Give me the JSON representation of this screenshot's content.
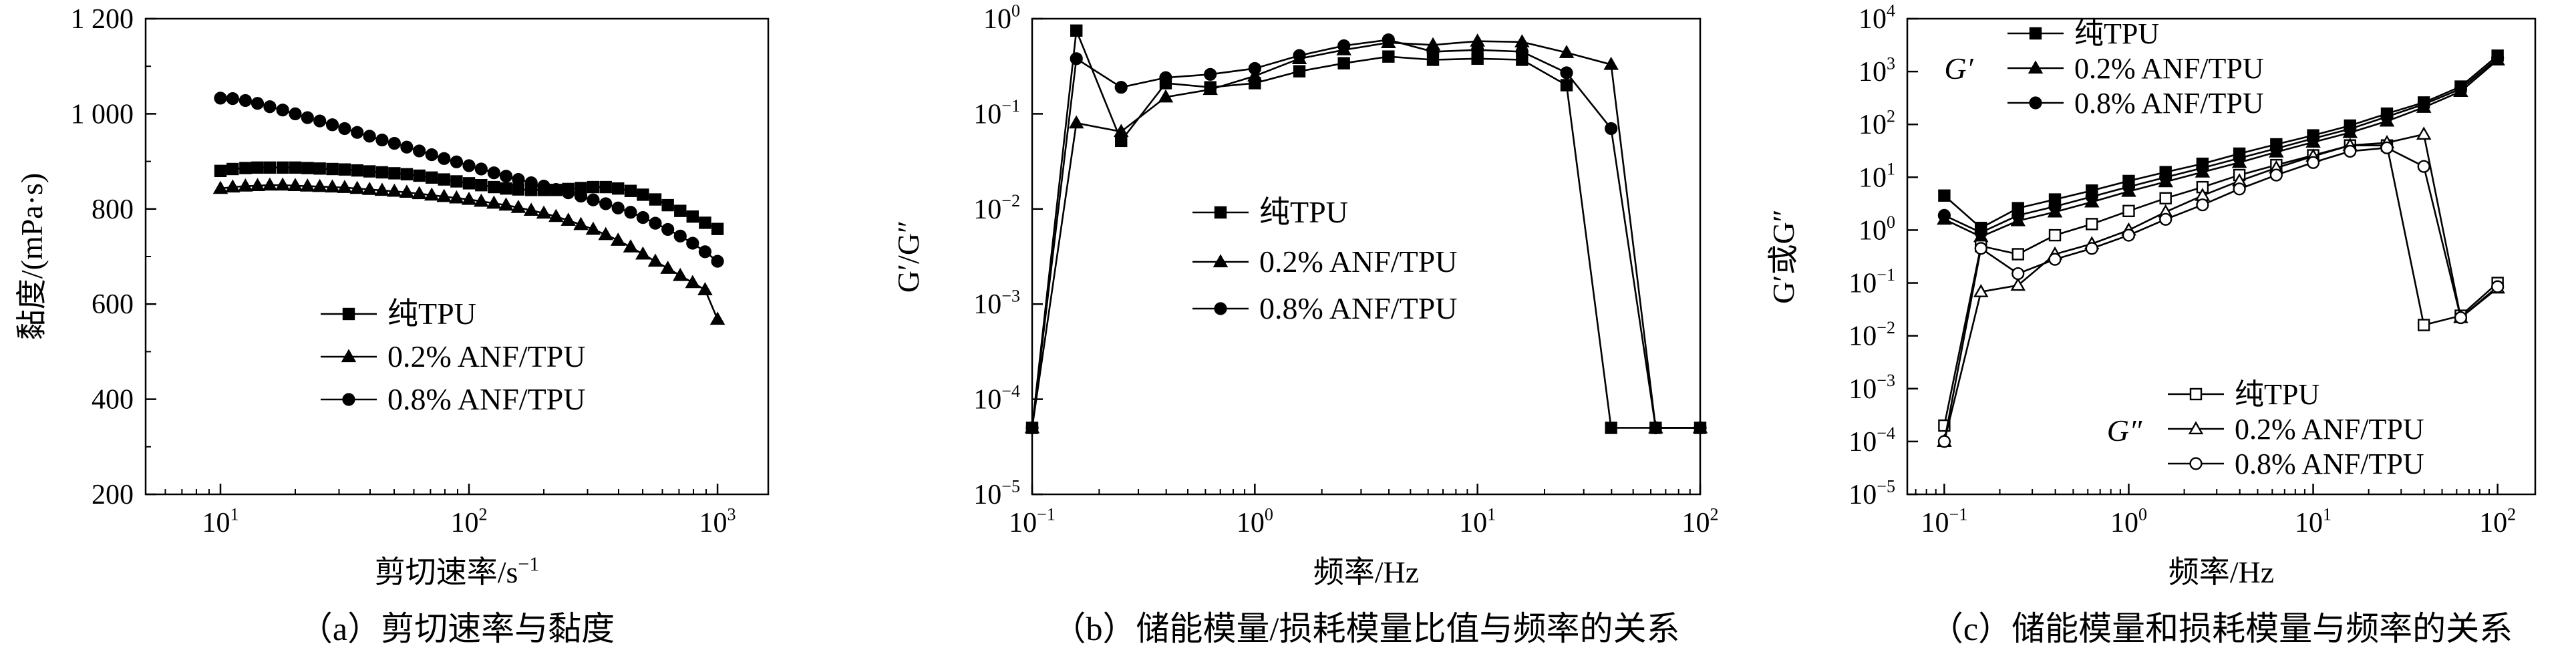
{
  "chart_data": [
    {
      "type": "line",
      "panel": "a",
      "caption": "（a）剪切速率与黏度",
      "xlabel": "剪切速率/s",
      "xlabel_sup": "−1",
      "ylabel": "黏度/(mPa·s)",
      "xscale": "log",
      "xlim": [
        5,
        1600
      ],
      "ylim": [
        200,
        1200
      ],
      "x_ticks": [
        10,
        100,
        1000
      ],
      "x_tick_labels": [
        [
          "10",
          "1"
        ],
        [
          "10",
          "2"
        ],
        [
          "10",
          "3"
        ]
      ],
      "y_ticks": [
        200,
        400,
        600,
        800,
        1000,
        1200
      ],
      "y_tick_labels": [
        "200",
        "400",
        "600",
        "800",
        "1 000",
        "1 200"
      ],
      "legend": {
        "position": "center-left"
      },
      "series": [
        {
          "name": "纯TPU",
          "marker": "square",
          "filled": true,
          "x": [
            10,
            11.2,
            12.6,
            14.1,
            15.8,
            17.8,
            20,
            22.4,
            25.1,
            28.2,
            31.6,
            35.5,
            39.8,
            44.7,
            50.1,
            56.2,
            63.1,
            70.8,
            79.4,
            89.1,
            100,
            112,
            126,
            141,
            158,
            178,
            200,
            224,
            251,
            282,
            316,
            355,
            398,
            447,
            501,
            562,
            631,
            708,
            794,
            891,
            1000
          ],
          "y": [
            880,
            884,
            886,
            887,
            887,
            887,
            887,
            886,
            885,
            884,
            883,
            881,
            879,
            877,
            875,
            873,
            870,
            866,
            862,
            858,
            854,
            850,
            846,
            843,
            841,
            840,
            840,
            840,
            842,
            844,
            846,
            846,
            843,
            838,
            830,
            820,
            808,
            796,
            784,
            771,
            758
          ]
        },
        {
          "name": "0.2% ANF/TPU",
          "marker": "triangle",
          "filled": true,
          "x": [
            10,
            11.2,
            12.6,
            14.1,
            15.8,
            17.8,
            20,
            22.4,
            25.1,
            28.2,
            31.6,
            35.5,
            39.8,
            44.7,
            50.1,
            56.2,
            63.1,
            70.8,
            79.4,
            89.1,
            100,
            112,
            126,
            141,
            158,
            178,
            200,
            224,
            251,
            282,
            316,
            355,
            398,
            447,
            501,
            562,
            631,
            708,
            794,
            891,
            1000
          ],
          "y": [
            843,
            846,
            848,
            849,
            850,
            850,
            849,
            848,
            847,
            846,
            845,
            843,
            841,
            839,
            837,
            835,
            832,
            829,
            826,
            823,
            820,
            816,
            812,
            808,
            803,
            797,
            791,
            784,
            776,
            767,
            757,
            746,
            734,
            720,
            705,
            690,
            675,
            660,
            645,
            630,
            568
          ]
        },
        {
          "name": "0.8% ANF/TPU",
          "marker": "circle",
          "filled": true,
          "x": [
            10,
            11.2,
            12.6,
            14.1,
            15.8,
            17.8,
            20,
            22.4,
            25.1,
            28.2,
            31.6,
            35.5,
            39.8,
            44.7,
            50.1,
            56.2,
            63.1,
            70.8,
            79.4,
            89.1,
            100,
            112,
            126,
            141,
            158,
            178,
            200,
            224,
            251,
            282,
            316,
            355,
            398,
            447,
            501,
            562,
            631,
            708,
            794,
            891,
            1000
          ],
          "y": [
            1033,
            1032,
            1028,
            1022,
            1015,
            1008,
            1000,
            992,
            985,
            977,
            969,
            961,
            953,
            945,
            938,
            930,
            922,
            914,
            906,
            899,
            891,
            884,
            876,
            869,
            862,
            855,
            848,
            841,
            834,
            827,
            819,
            811,
            802,
            793,
            782,
            770,
            757,
            743,
            728,
            710,
            690
          ]
        }
      ]
    },
    {
      "type": "line",
      "panel": "b",
      "caption": "（b）储能模量/损耗模量比值与频率的关系",
      "xlabel": "频率/Hz",
      "ylabel": "G′/G″",
      "xscale": "log",
      "yscale": "log",
      "xlim": [
        0.1,
        100
      ],
      "ylim": [
        1e-05,
        1
      ],
      "x_ticks": [
        0.1,
        1,
        10,
        100
      ],
      "x_tick_labels": [
        [
          "10",
          "−1"
        ],
        [
          "10",
          "0"
        ],
        [
          "10",
          "1"
        ],
        [
          "10",
          "2"
        ]
      ],
      "y_ticks": [
        1e-05,
        0.0001,
        0.001,
        0.01,
        0.1,
        1
      ],
      "y_tick_labels": [
        [
          "10",
          "−5"
        ],
        [
          "10",
          "−4"
        ],
        [
          "10",
          "−3"
        ],
        [
          "10",
          "−2"
        ],
        [
          "10",
          "−1"
        ],
        [
          "10",
          "0"
        ]
      ],
      "legend": {
        "position": "center"
      },
      "series": [
        {
          "name": "纯TPU",
          "marker": "square",
          "filled": true,
          "x": [
            0.1,
            0.158,
            0.251,
            0.398,
            0.631,
            1,
            1.585,
            2.512,
            3.981,
            6.31,
            10,
            15.85,
            25.12,
            39.81,
            63.1,
            100
          ],
          "y": [
            5e-05,
            0.75,
            0.052,
            0.21,
            0.19,
            0.21,
            0.28,
            0.34,
            0.4,
            0.37,
            0.38,
            0.37,
            0.2,
            5e-05,
            5e-05,
            5e-05
          ]
        },
        {
          "name": "0.2% ANF/TPU",
          "marker": "triangle",
          "filled": true,
          "x": [
            0.1,
            0.158,
            0.251,
            0.398,
            0.631,
            1,
            1.585,
            2.512,
            3.981,
            6.31,
            10,
            15.85,
            25.12,
            39.81,
            63.1,
            100
          ],
          "y": [
            5e-05,
            0.08,
            0.065,
            0.15,
            0.18,
            0.25,
            0.38,
            0.47,
            0.56,
            0.53,
            0.58,
            0.57,
            0.44,
            0.33,
            5e-05,
            5e-05
          ]
        },
        {
          "name": "0.8% ANF/TPU",
          "marker": "circle",
          "filled": true,
          "x": [
            0.1,
            0.158,
            0.251,
            0.398,
            0.631,
            1,
            1.585,
            2.512,
            3.981,
            6.31,
            10,
            15.85,
            25.12,
            39.81,
            63.1,
            100
          ],
          "y": [
            5e-05,
            0.38,
            0.19,
            0.24,
            0.26,
            0.3,
            0.41,
            0.52,
            0.6,
            0.45,
            0.47,
            0.45,
            0.27,
            0.07,
            5e-05,
            5e-05
          ]
        }
      ]
    },
    {
      "type": "line",
      "panel": "c",
      "caption": "（c）储能模量和损耗模量与频率的关系",
      "xlabel": "频率/Hz",
      "ylabel": "G′或G″",
      "xscale": "log",
      "yscale": "log",
      "xlim": [
        0.063,
        160
      ],
      "ylim": [
        1e-05,
        10000
      ],
      "x_ticks": [
        0.1,
        1,
        10,
        100
      ],
      "x_tick_labels": [
        [
          "10",
          "−1"
        ],
        [
          "10",
          "0"
        ],
        [
          "10",
          "1"
        ],
        [
          "10",
          "2"
        ]
      ],
      "y_ticks": [
        1e-05,
        0.0001,
        0.001,
        0.01,
        0.1,
        1,
        10,
        100,
        1000,
        10000
      ],
      "y_tick_labels": [
        [
          "10",
          "−5"
        ],
        [
          "10",
          "−4"
        ],
        [
          "10",
          "−3"
        ],
        [
          "10",
          "−2"
        ],
        [
          "10",
          "−1"
        ],
        [
          "10",
          "0"
        ],
        [
          "10",
          "1"
        ],
        [
          "10",
          "2"
        ],
        [
          "10",
          "3"
        ],
        [
          "10",
          "4"
        ]
      ],
      "legend_groups": [
        {
          "label": "G′",
          "position": "top-left",
          "entries": [
            "纯TPU",
            "0.2% ANF/TPU",
            "0.8% ANF/TPU"
          ],
          "filled": true
        },
        {
          "label": "G″",
          "position": "bottom-right",
          "entries": [
            "纯TPU",
            "0.2% ANF/TPU",
            "0.8% ANF/TPU"
          ],
          "filled": false
        }
      ],
      "series": [
        {
          "name": "纯TPU",
          "group": "G′",
          "marker": "square",
          "filled": true,
          "x": [
            0.1,
            0.158,
            0.251,
            0.398,
            0.631,
            1,
            1.585,
            2.512,
            3.981,
            6.31,
            10,
            15.85,
            25.12,
            39.81,
            63.1,
            100
          ],
          "y": [
            4.5,
            1.1,
            2.6,
            3.8,
            5.6,
            8.5,
            12.5,
            18,
            28,
            42,
            62,
            95,
            160,
            260,
            520,
            2000
          ]
        },
        {
          "name": "0.2% ANF/TPU",
          "group": "G′",
          "marker": "triangle",
          "filled": true,
          "x": [
            0.1,
            0.158,
            0.251,
            0.398,
            0.631,
            1,
            1.585,
            2.512,
            3.981,
            6.31,
            10,
            15.85,
            25.12,
            39.81,
            63.1,
            100
          ],
          "y": [
            1.6,
            0.75,
            1.5,
            2.2,
            3.4,
            5.4,
            8.2,
            12.5,
            19,
            30,
            46,
            70,
            115,
            210,
            420,
            1650
          ]
        },
        {
          "name": "0.8% ANF/TPU",
          "group": "G′",
          "marker": "circle",
          "filled": true,
          "x": [
            0.1,
            0.158,
            0.251,
            0.398,
            0.631,
            1,
            1.585,
            2.512,
            3.981,
            6.31,
            10,
            15.85,
            25.12,
            39.81,
            63.1,
            100
          ],
          "y": [
            1.9,
            0.9,
            1.9,
            2.8,
            4.3,
            6.6,
            10,
            15,
            23,
            35,
            54,
            82,
            140,
            240,
            470,
            1800
          ]
        },
        {
          "name": "纯TPU",
          "group": "G″",
          "marker": "square",
          "filled": false,
          "x": [
            0.1,
            0.158,
            0.251,
            0.398,
            0.631,
            1,
            1.585,
            2.512,
            3.981,
            6.31,
            10,
            15.85,
            25.12,
            39.81,
            63.1,
            100
          ],
          "y": [
            0.0002,
            0.5,
            0.35,
            0.8,
            1.3,
            2.3,
            4,
            6.5,
            11,
            17,
            26,
            40,
            40,
            0.016,
            0.024,
            0.1
          ]
        },
        {
          "name": "0.2% ANF/TPU",
          "group": "G″",
          "marker": "triangle",
          "filled": false,
          "x": [
            0.1,
            0.158,
            0.251,
            0.398,
            0.631,
            1,
            1.585,
            2.512,
            3.981,
            6.31,
            10,
            15.85,
            25.12,
            39.81,
            63.1,
            100
          ],
          "y": [
            0.0001,
            0.068,
            0.09,
            0.35,
            0.55,
            1,
            2.2,
            4.5,
            8.5,
            15,
            25,
            40,
            45,
            65,
            0.022,
            0.08
          ]
        },
        {
          "name": "0.8% ANF/TPU",
          "group": "G″",
          "marker": "circle",
          "filled": false,
          "x": [
            0.1,
            0.158,
            0.251,
            0.398,
            0.631,
            1,
            1.585,
            2.512,
            3.981,
            6.31,
            10,
            15.85,
            25.12,
            39.81,
            63.1,
            100
          ],
          "y": [
            0.0001,
            0.45,
            0.15,
            0.28,
            0.45,
            0.8,
            1.6,
            3,
            6,
            11,
            19,
            31,
            36,
            16,
            0.022,
            0.085
          ]
        }
      ]
    }
  ]
}
